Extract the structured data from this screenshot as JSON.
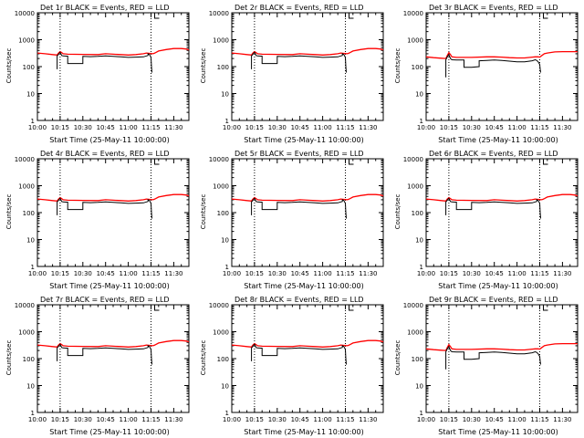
{
  "chart_data": [
    {
      "type": "line",
      "title": "Det 1r BLACK = Events, RED = LLD",
      "variant": "a",
      "xlabel": "Start Time (25-May-11 10:00:00)",
      "ylabel": "Counts/sec",
      "xlim": [
        0,
        100
      ],
      "ylim": [
        1,
        10000
      ],
      "yscale": "log",
      "x_ticks": [
        0,
        15,
        30,
        45,
        60,
        75,
        90
      ],
      "x_tick_labels": [
        "10:00",
        "10:15",
        "10:30",
        "10:45",
        "11:00",
        "11:15",
        "11:30"
      ],
      "y_ticks": [
        1,
        10,
        100,
        1000,
        10000
      ],
      "y_tick_labels": [
        "1",
        "10",
        "100",
        "1000",
        "10000"
      ],
      "markers": [
        15,
        75
      ],
      "series": [
        {
          "name": "Events",
          "color": "#000000"
        },
        {
          "name": "LLD",
          "color": "#ff0000"
        }
      ]
    },
    {
      "type": "line",
      "title": "Det 2r BLACK = Events, RED = LLD",
      "variant": "a",
      "xlabel": "Start Time (25-May-11 10:00:00)",
      "ylabel": "Counts/sec",
      "xlim": [
        0,
        100
      ],
      "ylim": [
        1,
        10000
      ],
      "yscale": "log",
      "x_ticks": [
        0,
        15,
        30,
        45,
        60,
        75,
        90
      ],
      "x_tick_labels": [
        "10:00",
        "10:15",
        "10:30",
        "10:45",
        "11:00",
        "11:15",
        "11:30"
      ],
      "y_ticks": [
        1,
        10,
        100,
        1000,
        10000
      ],
      "y_tick_labels": [
        "1",
        "10",
        "100",
        "1000",
        "10000"
      ],
      "markers": [
        15,
        75
      ],
      "series": [
        {
          "name": "Events",
          "color": "#000000"
        },
        {
          "name": "LLD",
          "color": "#ff0000"
        }
      ]
    },
    {
      "type": "line",
      "title": "Det 3r BLACK = Events, RED = LLD",
      "variant": "b",
      "xlabel": "Start Time (25-May-11 10:00:00)",
      "ylabel": "Counts/sec",
      "xlim": [
        0,
        100
      ],
      "ylim": [
        1,
        10000
      ],
      "yscale": "log",
      "x_ticks": [
        0,
        15,
        30,
        45,
        60,
        75,
        90
      ],
      "x_tick_labels": [
        "10:00",
        "10:15",
        "10:30",
        "10:45",
        "11:00",
        "11:15",
        "11:30"
      ],
      "y_ticks": [
        1,
        10,
        100,
        1000,
        10000
      ],
      "y_tick_labels": [
        "1",
        "10",
        "100",
        "1000",
        "10000"
      ],
      "markers": [
        15,
        75
      ],
      "series": [
        {
          "name": "Events",
          "color": "#000000"
        },
        {
          "name": "LLD",
          "color": "#ff0000"
        }
      ]
    },
    {
      "type": "line",
      "title": "Det 4r BLACK = Events, RED = LLD",
      "variant": "a",
      "xlabel": "Start Time (25-May-11 10:00:00)",
      "ylabel": "Counts/sec",
      "xlim": [
        0,
        100
      ],
      "ylim": [
        1,
        10000
      ],
      "yscale": "log",
      "x_ticks": [
        0,
        15,
        30,
        45,
        60,
        75,
        90
      ],
      "x_tick_labels": [
        "10:00",
        "10:15",
        "10:30",
        "10:45",
        "11:00",
        "11:15",
        "11:30"
      ],
      "y_ticks": [
        1,
        10,
        100,
        1000,
        10000
      ],
      "y_tick_labels": [
        "1",
        "10",
        "100",
        "1000",
        "10000"
      ],
      "markers": [
        15,
        75
      ],
      "series": [
        {
          "name": "Events",
          "color": "#000000"
        },
        {
          "name": "LLD",
          "color": "#ff0000"
        }
      ]
    },
    {
      "type": "line",
      "title": "Det 5r BLACK = Events, RED = LLD",
      "variant": "a",
      "xlabel": "Start Time (25-May-11 10:00:00)",
      "ylabel": "Counts/sec",
      "xlim": [
        0,
        100
      ],
      "ylim": [
        1,
        10000
      ],
      "yscale": "log",
      "x_ticks": [
        0,
        15,
        30,
        45,
        60,
        75,
        90
      ],
      "x_tick_labels": [
        "10:00",
        "10:15",
        "10:30",
        "10:45",
        "11:00",
        "11:15",
        "11:30"
      ],
      "y_ticks": [
        1,
        10,
        100,
        1000,
        10000
      ],
      "y_tick_labels": [
        "1",
        "10",
        "100",
        "1000",
        "10000"
      ],
      "markers": [
        15,
        75
      ],
      "series": [
        {
          "name": "Events",
          "color": "#000000"
        },
        {
          "name": "LLD",
          "color": "#ff0000"
        }
      ]
    },
    {
      "type": "line",
      "title": "Det 6r BLACK = Events, RED = LLD",
      "variant": "a",
      "xlabel": "Start Time (25-May-11 10:00:00)",
      "ylabel": "Counts/sec",
      "xlim": [
        0,
        100
      ],
      "ylim": [
        1,
        10000
      ],
      "yscale": "log",
      "x_ticks": [
        0,
        15,
        30,
        45,
        60,
        75,
        90
      ],
      "x_tick_labels": [
        "10:00",
        "10:15",
        "10:30",
        "10:45",
        "11:00",
        "11:15",
        "11:30"
      ],
      "y_ticks": [
        1,
        10,
        100,
        1000,
        10000
      ],
      "y_tick_labels": [
        "1",
        "10",
        "100",
        "1000",
        "10000"
      ],
      "markers": [
        15,
        75
      ],
      "series": [
        {
          "name": "Events",
          "color": "#000000"
        },
        {
          "name": "LLD",
          "color": "#ff0000"
        }
      ]
    },
    {
      "type": "line",
      "title": "Det 7r BLACK = Events, RED = LLD",
      "variant": "a",
      "xlabel": "Start Time (25-May-11 10:00:00)",
      "ylabel": "Counts/sec",
      "xlim": [
        0,
        100
      ],
      "ylim": [
        1,
        10000
      ],
      "yscale": "log",
      "x_ticks": [
        0,
        15,
        30,
        45,
        60,
        75,
        90
      ],
      "x_tick_labels": [
        "10:00",
        "10:15",
        "10:30",
        "10:45",
        "11:00",
        "11:15",
        "11:30"
      ],
      "y_ticks": [
        1,
        10,
        100,
        1000,
        10000
      ],
      "y_tick_labels": [
        "1",
        "10",
        "100",
        "1000",
        "10000"
      ],
      "markers": [
        15,
        75
      ],
      "series": [
        {
          "name": "Events",
          "color": "#000000"
        },
        {
          "name": "LLD",
          "color": "#ff0000"
        }
      ]
    },
    {
      "type": "line",
      "title": "Det 8r BLACK = Events, RED = LLD",
      "variant": "a",
      "xlabel": "Start Time (25-May-11 10:00:00)",
      "ylabel": "Counts/sec",
      "xlim": [
        0,
        100
      ],
      "ylim": [
        1,
        10000
      ],
      "yscale": "log",
      "x_ticks": [
        0,
        15,
        30,
        45,
        60,
        75,
        90
      ],
      "x_tick_labels": [
        "10:00",
        "10:15",
        "10:30",
        "10:45",
        "11:00",
        "11:15",
        "11:30"
      ],
      "y_ticks": [
        1,
        10,
        100,
        1000,
        10000
      ],
      "y_tick_labels": [
        "1",
        "10",
        "100",
        "1000",
        "10000"
      ],
      "markers": [
        15,
        75
      ],
      "series": [
        {
          "name": "Events",
          "color": "#000000"
        },
        {
          "name": "LLD",
          "color": "#ff0000"
        }
      ]
    },
    {
      "type": "line",
      "title": "Det 9r BLACK = Events, RED = LLD",
      "variant": "b",
      "xlabel": "Start Time (25-May-11 10:00:00)",
      "ylabel": "Counts/sec",
      "xlim": [
        0,
        100
      ],
      "ylim": [
        1,
        10000
      ],
      "yscale": "log",
      "x_ticks": [
        0,
        15,
        30,
        45,
        60,
        75,
        90
      ],
      "x_tick_labels": [
        "10:00",
        "10:15",
        "10:30",
        "10:45",
        "11:00",
        "11:15",
        "11:30"
      ],
      "y_ticks": [
        1,
        10,
        100,
        1000,
        10000
      ],
      "y_tick_labels": [
        "1",
        "10",
        "100",
        "1000",
        "10000"
      ],
      "markers": [
        15,
        75
      ],
      "series": [
        {
          "name": "Events",
          "color": "#000000"
        },
        {
          "name": "LLD",
          "color": "#ff0000"
        }
      ]
    }
  ],
  "curves": {
    "a": {
      "lld_x": [
        0,
        5,
        10,
        13,
        14,
        15,
        16,
        17,
        20,
        30,
        40,
        45,
        50,
        55,
        60,
        65,
        70,
        72,
        74,
        75,
        76,
        77,
        78,
        80,
        85,
        90,
        95,
        98,
        100
      ],
      "lld_y": [
        320,
        300,
        280,
        270,
        320,
        360,
        330,
        300,
        290,
        285,
        280,
        300,
        290,
        280,
        270,
        280,
        300,
        320,
        310,
        305,
        300,
        310,
        330,
        380,
        430,
        470,
        470,
        450,
        420
      ],
      "events_x": [
        13,
        13,
        14,
        15,
        16,
        17,
        19,
        20,
        20,
        30,
        30,
        35,
        35,
        40,
        45,
        50,
        55,
        60,
        65,
        70,
        72,
        73,
        73,
        74,
        75,
        75.3,
        75.6
      ],
      "events_y": [
        80,
        250,
        290,
        340,
        260,
        250,
        245,
        245,
        130,
        130,
        240,
        235,
        235,
        240,
        250,
        240,
        230,
        220,
        225,
        230,
        250,
        260,
        300,
        280,
        220,
        100,
        60
      ]
    },
    "b": {
      "lld_x": [
        0,
        5,
        10,
        13,
        14,
        15,
        16,
        17,
        20,
        25,
        30,
        40,
        45,
        50,
        55,
        60,
        65,
        70,
        72,
        74,
        75,
        76,
        78,
        80,
        85,
        90,
        95,
        98,
        100
      ],
      "lld_y": [
        230,
        215,
        205,
        200,
        260,
        330,
        280,
        230,
        220,
        220,
        220,
        230,
        230,
        225,
        215,
        210,
        210,
        225,
        230,
        230,
        225,
        250,
        300,
        320,
        350,
        360,
        360,
        360,
        360
      ],
      "events_x": [
        13,
        13,
        14,
        15,
        16,
        17,
        20,
        25,
        25,
        30,
        35,
        35,
        40,
        45,
        50,
        55,
        60,
        65,
        70,
        72,
        73,
        74,
        75,
        75.3,
        75.6
      ],
      "events_y": [
        40,
        180,
        230,
        280,
        200,
        180,
        175,
        175,
        95,
        95,
        100,
        165,
        170,
        175,
        170,
        160,
        150,
        150,
        165,
        180,
        170,
        150,
        120,
        80,
        60
      ]
    }
  }
}
